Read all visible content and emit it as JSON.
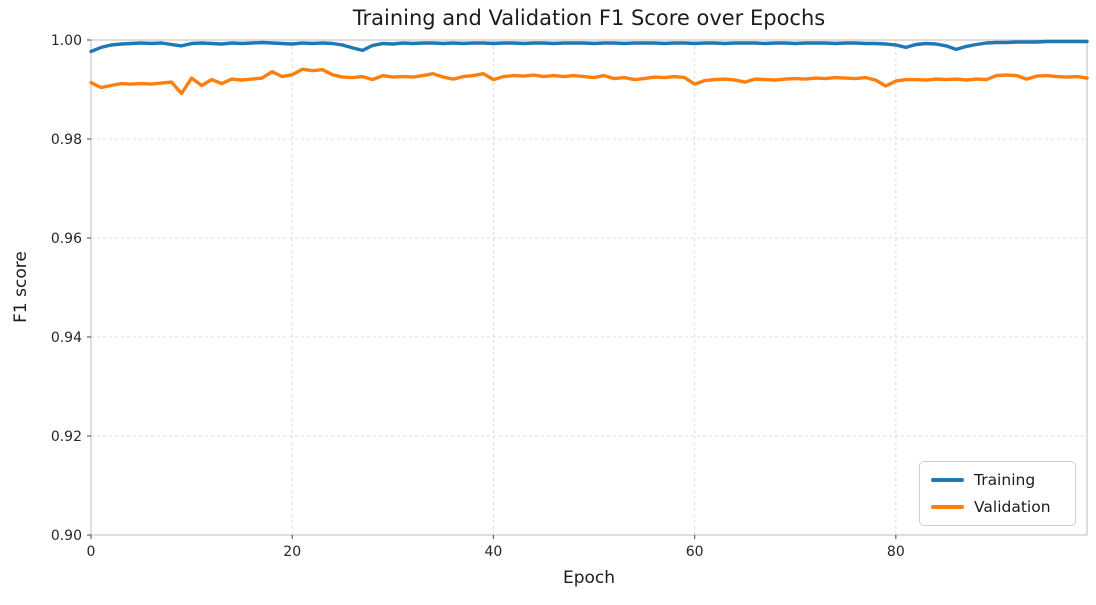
{
  "figure": {
    "title": "Training and Validation F1 Score over Epochs",
    "xlabel": "Epoch",
    "ylabel": "F1 score"
  },
  "legend": {
    "position": "lower right",
    "items": [
      {
        "label": "Training",
        "color": "#1f77b4"
      },
      {
        "label": "Validation",
        "color": "#ff7f0e"
      }
    ]
  },
  "style": {
    "background": "#ffffff",
    "grid_color": "#dcdcdc",
    "spine_color": "#c9c9c9",
    "tick_color": "#555555",
    "text_color": "#262626",
    "line_width": 3.4
  },
  "chart_data": {
    "type": "line",
    "title": "Training and Validation F1 Score over Epochs",
    "xlabel": "Epoch",
    "ylabel": "F1 score",
    "xlim": [
      0,
      99
    ],
    "ylim": [
      0.9,
      1.0
    ],
    "grid": true,
    "legend_position": "lower right",
    "xticks": [
      0,
      20,
      40,
      60,
      80
    ],
    "xtick_labels": [
      "0",
      "20",
      "40",
      "60",
      "80"
    ],
    "yticks": [
      0.9,
      0.92,
      0.94,
      0.96,
      0.98,
      1.0
    ],
    "ytick_labels": [
      "0.90",
      "0.92",
      "0.94",
      "0.96",
      "0.98",
      "1.00"
    ],
    "x": [
      0,
      1,
      2,
      3,
      4,
      5,
      6,
      7,
      8,
      9,
      10,
      11,
      12,
      13,
      14,
      15,
      16,
      17,
      18,
      19,
      20,
      21,
      22,
      23,
      24,
      25,
      26,
      27,
      28,
      29,
      30,
      31,
      32,
      33,
      34,
      35,
      36,
      37,
      38,
      39,
      40,
      41,
      42,
      43,
      44,
      45,
      46,
      47,
      48,
      49,
      50,
      51,
      52,
      53,
      54,
      55,
      56,
      57,
      58,
      59,
      60,
      61,
      62,
      63,
      64,
      65,
      66,
      67,
      68,
      69,
      70,
      71,
      72,
      73,
      74,
      75,
      76,
      77,
      78,
      79,
      80,
      81,
      82,
      83,
      84,
      85,
      86,
      87,
      88,
      89,
      90,
      91,
      92,
      93,
      94,
      95,
      96,
      97,
      98,
      99
    ],
    "series": [
      {
        "name": "Training",
        "color": "#1f77b4",
        "values": [
          0.9977,
          0.9985,
          0.999,
          0.9992,
          0.9993,
          0.9994,
          0.9993,
          0.9994,
          0.9991,
          0.9988,
          0.9993,
          0.9994,
          0.9993,
          0.9992,
          0.9994,
          0.9993,
          0.9994,
          0.9995,
          0.9994,
          0.9993,
          0.9992,
          0.9994,
          0.9993,
          0.9994,
          0.9993,
          0.999,
          0.9984,
          0.9979,
          0.9989,
          0.9993,
          0.9992,
          0.9994,
          0.9993,
          0.9994,
          0.9994,
          0.9993,
          0.9994,
          0.9993,
          0.9994,
          0.9994,
          0.9993,
          0.9994,
          0.9994,
          0.9993,
          0.9994,
          0.9994,
          0.9993,
          0.9994,
          0.9994,
          0.9994,
          0.9993,
          0.9994,
          0.9994,
          0.9993,
          0.9994,
          0.9994,
          0.9994,
          0.9993,
          0.9994,
          0.9994,
          0.9993,
          0.9994,
          0.9994,
          0.9993,
          0.9994,
          0.9994,
          0.9994,
          0.9993,
          0.9994,
          0.9994,
          0.9993,
          0.9994,
          0.9994,
          0.9994,
          0.9993,
          0.9994,
          0.9994,
          0.9993,
          0.9993,
          0.9992,
          0.999,
          0.9985,
          0.9991,
          0.9993,
          0.9992,
          0.9988,
          0.9981,
          0.9987,
          0.9991,
          0.9994,
          0.9995,
          0.9995,
          0.9996,
          0.9996,
          0.9996,
          0.9997,
          0.9997,
          0.9997,
          0.9997,
          0.9997
        ]
      },
      {
        "name": "Validation",
        "color": "#ff7f0e",
        "values": [
          0.9914,
          0.9904,
          0.9908,
          0.9912,
          0.9911,
          0.9912,
          0.9911,
          0.9913,
          0.9915,
          0.9892,
          0.9923,
          0.9908,
          0.992,
          0.9912,
          0.9921,
          0.9919,
          0.9921,
          0.9923,
          0.9936,
          0.9926,
          0.993,
          0.9941,
          0.9938,
          0.994,
          0.993,
          0.9925,
          0.9924,
          0.9926,
          0.992,
          0.9928,
          0.9925,
          0.9926,
          0.9925,
          0.9928,
          0.9932,
          0.9925,
          0.9921,
          0.9926,
          0.9928,
          0.9932,
          0.992,
          0.9926,
          0.9928,
          0.9927,
          0.9929,
          0.9926,
          0.9928,
          0.9926,
          0.9928,
          0.9926,
          0.9924,
          0.9928,
          0.9922,
          0.9924,
          0.992,
          0.9922,
          0.9925,
          0.9924,
          0.9926,
          0.9924,
          0.9911,
          0.9918,
          0.992,
          0.9921,
          0.9919,
          0.9915,
          0.9921,
          0.992,
          0.9919,
          0.9921,
          0.9922,
          0.9921,
          0.9923,
          0.9922,
          0.9924,
          0.9923,
          0.9922,
          0.9924,
          0.9919,
          0.9907,
          0.9917,
          0.992,
          0.992,
          0.9919,
          0.9921,
          0.992,
          0.9921,
          0.9919,
          0.9921,
          0.992,
          0.9928,
          0.9929,
          0.9928,
          0.9921,
          0.9927,
          0.9928,
          0.9926,
          0.9925,
          0.9926,
          0.9923
        ]
      }
    ]
  }
}
